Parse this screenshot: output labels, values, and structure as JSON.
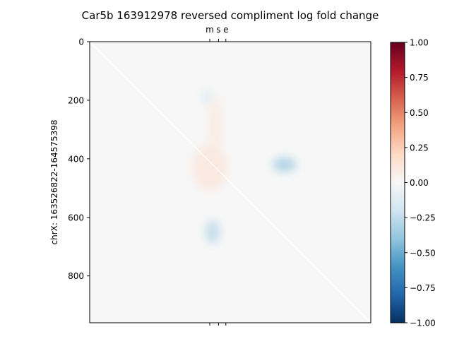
{
  "chart_data": {
    "type": "heatmap",
    "title": "Car5b 163912978 reversed compliment log fold change",
    "ylabel": "chrX: 163526822-164575398",
    "xlabel": "",
    "y_ticks": [
      0,
      200,
      400,
      600,
      800
    ],
    "y_tick_labels": [
      "0",
      "200",
      "400",
      "600",
      "800"
    ],
    "ylim": [
      0,
      960
    ],
    "xlim": [
      0,
      960
    ],
    "top_markers": [
      {
        "label": "m",
        "position": 410
      },
      {
        "label": "s",
        "position": 440
      },
      {
        "label": "e",
        "position": 465
      }
    ],
    "colorbar": {
      "min": -1.0,
      "max": 1.0,
      "colormap": "RdBu_r",
      "ticks": [
        1.0,
        0.75,
        0.5,
        0.25,
        0.0,
        -0.25,
        -0.5,
        -0.75,
        -1.0
      ],
      "tick_labels": [
        "1.00",
        "0.75",
        "0.50",
        "0.25",
        "0.00",
        "−0.25",
        "−0.50",
        "−0.75",
        "−1.00"
      ]
    },
    "background_value": 0.0,
    "diagonal": true,
    "features": [
      {
        "shape": "blob",
        "x": 410,
        "y": 430,
        "rx": 60,
        "ry": 80,
        "value": 0.05
      },
      {
        "shape": "blob",
        "x": 430,
        "y": 290,
        "rx": 25,
        "ry": 100,
        "value": 0.04
      },
      {
        "shape": "blob",
        "x": 665,
        "y": 420,
        "rx": 40,
        "ry": 25,
        "value": -0.15
      },
      {
        "shape": "blob",
        "x": 420,
        "y": 650,
        "rx": 25,
        "ry": 40,
        "value": -0.12
      },
      {
        "shape": "blob",
        "x": 400,
        "y": 190,
        "rx": 15,
        "ry": 30,
        "value": -0.06
      }
    ]
  }
}
